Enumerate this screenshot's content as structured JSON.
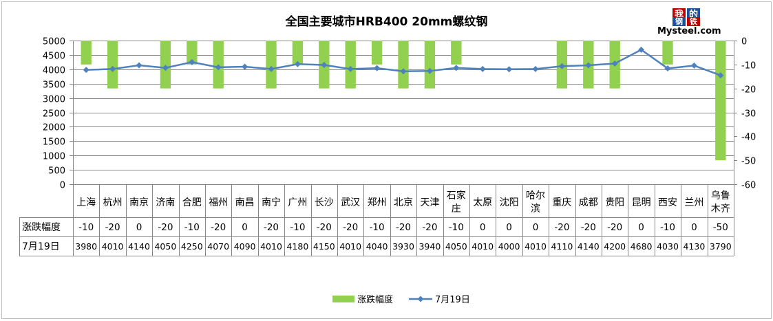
{
  "chart_data": {
    "type": "bar+line",
    "title": "全国主要城市HRB400 20mm螺纹钢",
    "categories": [
      "上海",
      "杭州",
      "南京",
      "济南",
      "合肥",
      "福州",
      "南昌",
      "南宁",
      "广州",
      "长沙",
      "武汉",
      "郑州",
      "北京",
      "天津",
      "石家庄",
      "太原",
      "沈阳",
      "哈尔滨",
      "重庆",
      "成都",
      "贵阳",
      "昆明",
      "西安",
      "兰州",
      "乌鲁木齐"
    ],
    "series": [
      {
        "name": "涨跌幅度",
        "type": "bar",
        "axis": "right",
        "color": "#92D050",
        "values": [
          -10,
          -20,
          0,
          -20,
          -10,
          -20,
          0,
          -20,
          -10,
          -20,
          -20,
          -10,
          -20,
          -20,
          -10,
          0,
          0,
          0,
          -20,
          -20,
          -20,
          0,
          -10,
          0,
          -50
        ]
      },
      {
        "name": "7月19日",
        "type": "line",
        "axis": "left",
        "color": "#4F81BD",
        "values": [
          3980,
          4010,
          4140,
          4050,
          4250,
          4070,
          4090,
          4010,
          4180,
          4150,
          4010,
          4040,
          3930,
          3940,
          4050,
          4010,
          4000,
          4010,
          4110,
          4140,
          4200,
          4680,
          4030,
          4130,
          3790
        ]
      }
    ],
    "left_axis": {
      "min": 0,
      "max": 5000,
      "step": 500,
      "ticks": [
        "0",
        "500",
        "1000",
        "1500",
        "2000",
        "2500",
        "3000",
        "3500",
        "4000",
        "4500",
        "5000"
      ]
    },
    "right_axis": {
      "min": -60,
      "max": 0,
      "step": 10,
      "ticks": [
        "0",
        "-10",
        "-20",
        "-30",
        "-40",
        "-50",
        "-60"
      ]
    },
    "table_row_labels": [
      "涨跌幅度",
      "7月19日"
    ],
    "legend_position": "bottom"
  },
  "logo": {
    "chars": [
      "我",
      "的",
      "钢",
      "铁"
    ],
    "text": "Mysteel.com",
    "colors": [
      "#C00000",
      "#1F4E9A",
      "#1F4E9A",
      "#C00000"
    ]
  }
}
